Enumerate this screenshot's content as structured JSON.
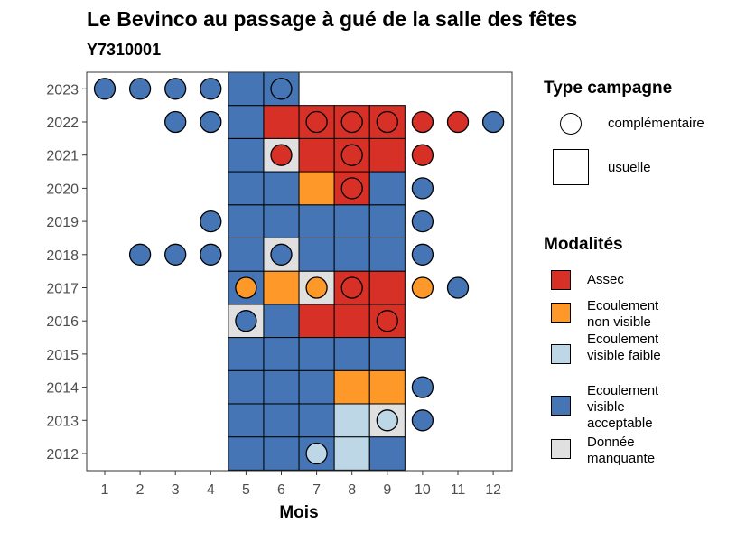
{
  "title": "Le Bevinco au passage à gué de la salle des fêtes",
  "subtitle": "Y7310001",
  "chart_data": {
    "type": "heatmap",
    "xlabel": "Mois",
    "ylabel": "",
    "x_ticks": [
      "1",
      "2",
      "3",
      "4",
      "5",
      "6",
      "7",
      "8",
      "9",
      "10",
      "11",
      "12"
    ],
    "y_ticks": [
      "2012",
      "2013",
      "2014",
      "2015",
      "2016",
      "2017",
      "2018",
      "2019",
      "2020",
      "2021",
      "2022",
      "2023"
    ],
    "colors": {
      "Assec": "#d73027",
      "Ecoulement non visible": "#fe9929",
      "Ecoulement visible faible": "#bdd7e7",
      "Ecoulement visible acceptable": "#4575b4",
      "Donnée manquante": "#e0e0e0"
    },
    "tiles_usuelle": [
      {
        "year": 2012,
        "month": 5,
        "modalite": "Ecoulement visible acceptable"
      },
      {
        "year": 2012,
        "month": 6,
        "modalite": "Ecoulement visible acceptable"
      },
      {
        "year": 2012,
        "month": 7,
        "modalite": "Ecoulement visible acceptable"
      },
      {
        "year": 2012,
        "month": 8,
        "modalite": "Ecoulement visible faible"
      },
      {
        "year": 2012,
        "month": 9,
        "modalite": "Ecoulement visible acceptable"
      },
      {
        "year": 2013,
        "month": 5,
        "modalite": "Ecoulement visible acceptable"
      },
      {
        "year": 2013,
        "month": 6,
        "modalite": "Ecoulement visible acceptable"
      },
      {
        "year": 2013,
        "month": 7,
        "modalite": "Ecoulement visible acceptable"
      },
      {
        "year": 2013,
        "month": 8,
        "modalite": "Ecoulement visible faible"
      },
      {
        "year": 2013,
        "month": 9,
        "modalite": "Donnée manquante"
      },
      {
        "year": 2014,
        "month": 5,
        "modalite": "Ecoulement visible acceptable"
      },
      {
        "year": 2014,
        "month": 6,
        "modalite": "Ecoulement visible acceptable"
      },
      {
        "year": 2014,
        "month": 7,
        "modalite": "Ecoulement visible acceptable"
      },
      {
        "year": 2014,
        "month": 8,
        "modalite": "Ecoulement non visible"
      },
      {
        "year": 2014,
        "month": 9,
        "modalite": "Ecoulement non visible"
      },
      {
        "year": 2015,
        "month": 5,
        "modalite": "Ecoulement visible acceptable"
      },
      {
        "year": 2015,
        "month": 6,
        "modalite": "Ecoulement visible acceptable"
      },
      {
        "year": 2015,
        "month": 7,
        "modalite": "Ecoulement visible acceptable"
      },
      {
        "year": 2015,
        "month": 8,
        "modalite": "Ecoulement visible acceptable"
      },
      {
        "year": 2015,
        "month": 9,
        "modalite": "Ecoulement visible acceptable"
      },
      {
        "year": 2016,
        "month": 5,
        "modalite": "Donnée manquante"
      },
      {
        "year": 2016,
        "month": 6,
        "modalite": "Ecoulement visible acceptable"
      },
      {
        "year": 2016,
        "month": 7,
        "modalite": "Assec"
      },
      {
        "year": 2016,
        "month": 8,
        "modalite": "Assec"
      },
      {
        "year": 2016,
        "month": 9,
        "modalite": "Assec"
      },
      {
        "year": 2017,
        "month": 5,
        "modalite": "Ecoulement visible acceptable"
      },
      {
        "year": 2017,
        "month": 6,
        "modalite": "Ecoulement non visible"
      },
      {
        "year": 2017,
        "month": 7,
        "modalite": "Donnée manquante"
      },
      {
        "year": 2017,
        "month": 8,
        "modalite": "Assec"
      },
      {
        "year": 2017,
        "month": 9,
        "modalite": "Assec"
      },
      {
        "year": 2018,
        "month": 5,
        "modalite": "Ecoulement visible acceptable"
      },
      {
        "year": 2018,
        "month": 6,
        "modalite": "Donnée manquante"
      },
      {
        "year": 2018,
        "month": 7,
        "modalite": "Ecoulement visible acceptable"
      },
      {
        "year": 2018,
        "month": 8,
        "modalite": "Ecoulement visible acceptable"
      },
      {
        "year": 2018,
        "month": 9,
        "modalite": "Ecoulement visible acceptable"
      },
      {
        "year": 2019,
        "month": 5,
        "modalite": "Ecoulement visible acceptable"
      },
      {
        "year": 2019,
        "month": 6,
        "modalite": "Ecoulement visible acceptable"
      },
      {
        "year": 2019,
        "month": 7,
        "modalite": "Ecoulement visible acceptable"
      },
      {
        "year": 2019,
        "month": 8,
        "modalite": "Ecoulement visible acceptable"
      },
      {
        "year": 2019,
        "month": 9,
        "modalite": "Ecoulement visible acceptable"
      },
      {
        "year": 2020,
        "month": 5,
        "modalite": "Ecoulement visible acceptable"
      },
      {
        "year": 2020,
        "month": 6,
        "modalite": "Ecoulement visible acceptable"
      },
      {
        "year": 2020,
        "month": 7,
        "modalite": "Ecoulement non visible"
      },
      {
        "year": 2020,
        "month": 8,
        "modalite": "Assec"
      },
      {
        "year": 2020,
        "month": 9,
        "modalite": "Ecoulement visible acceptable"
      },
      {
        "year": 2021,
        "month": 5,
        "modalite": "Ecoulement visible acceptable"
      },
      {
        "year": 2021,
        "month": 6,
        "modalite": "Donnée manquante"
      },
      {
        "year": 2021,
        "month": 7,
        "modalite": "Assec"
      },
      {
        "year": 2021,
        "month": 8,
        "modalite": "Assec"
      },
      {
        "year": 2021,
        "month": 9,
        "modalite": "Assec"
      },
      {
        "year": 2022,
        "month": 5,
        "modalite": "Ecoulement visible acceptable"
      },
      {
        "year": 2022,
        "month": 6,
        "modalite": "Assec"
      },
      {
        "year": 2022,
        "month": 7,
        "modalite": "Assec"
      },
      {
        "year": 2022,
        "month": 8,
        "modalite": "Assec"
      },
      {
        "year": 2022,
        "month": 9,
        "modalite": "Assec"
      },
      {
        "year": 2023,
        "month": 5,
        "modalite": "Ecoulement visible acceptable"
      },
      {
        "year": 2023,
        "month": 6,
        "modalite": "Ecoulement visible acceptable"
      }
    ],
    "points_complementaire": [
      {
        "year": 2012,
        "month": 7,
        "modalite": "Ecoulement visible faible"
      },
      {
        "year": 2013,
        "month": 9,
        "modalite": "Ecoulement visible faible"
      },
      {
        "year": 2013,
        "month": 10,
        "modalite": "Ecoulement visible acceptable"
      },
      {
        "year": 2014,
        "month": 10,
        "modalite": "Ecoulement visible acceptable"
      },
      {
        "year": 2016,
        "month": 5,
        "modalite": "Ecoulement visible acceptable"
      },
      {
        "year": 2016,
        "month": 9,
        "modalite": "Assec"
      },
      {
        "year": 2017,
        "month": 5,
        "modalite": "Ecoulement non visible"
      },
      {
        "year": 2017,
        "month": 7,
        "modalite": "Ecoulement non visible"
      },
      {
        "year": 2017,
        "month": 8,
        "modalite": "Assec"
      },
      {
        "year": 2017,
        "month": 10,
        "modalite": "Ecoulement non visible"
      },
      {
        "year": 2017,
        "month": 11,
        "modalite": "Ecoulement visible acceptable"
      },
      {
        "year": 2018,
        "month": 2,
        "modalite": "Ecoulement visible acceptable"
      },
      {
        "year": 2018,
        "month": 3,
        "modalite": "Ecoulement visible acceptable"
      },
      {
        "year": 2018,
        "month": 4,
        "modalite": "Ecoulement visible acceptable"
      },
      {
        "year": 2018,
        "month": 6,
        "modalite": "Ecoulement visible acceptable"
      },
      {
        "year": 2018,
        "month": 10,
        "modalite": "Ecoulement visible acceptable"
      },
      {
        "year": 2019,
        "month": 4,
        "modalite": "Ecoulement visible acceptable"
      },
      {
        "year": 2019,
        "month": 10,
        "modalite": "Ecoulement visible acceptable"
      },
      {
        "year": 2020,
        "month": 8,
        "modalite": "Assec"
      },
      {
        "year": 2020,
        "month": 10,
        "modalite": "Ecoulement visible acceptable"
      },
      {
        "year": 2021,
        "month": 6,
        "modalite": "Assec"
      },
      {
        "year": 2021,
        "month": 8,
        "modalite": "Assec"
      },
      {
        "year": 2021,
        "month": 10,
        "modalite": "Assec"
      },
      {
        "year": 2022,
        "month": 3,
        "modalite": "Ecoulement visible acceptable"
      },
      {
        "year": 2022,
        "month": 4,
        "modalite": "Ecoulement visible acceptable"
      },
      {
        "year": 2022,
        "month": 7,
        "modalite": "Assec"
      },
      {
        "year": 2022,
        "month": 8,
        "modalite": "Assec"
      },
      {
        "year": 2022,
        "month": 9,
        "modalite": "Assec"
      },
      {
        "year": 2022,
        "month": 10,
        "modalite": "Assec"
      },
      {
        "year": 2022,
        "month": 11,
        "modalite": "Assec"
      },
      {
        "year": 2022,
        "month": 12,
        "modalite": "Ecoulement visible acceptable"
      },
      {
        "year": 2023,
        "month": 1,
        "modalite": "Ecoulement visible acceptable"
      },
      {
        "year": 2023,
        "month": 2,
        "modalite": "Ecoulement visible acceptable"
      },
      {
        "year": 2023,
        "month": 3,
        "modalite": "Ecoulement visible acceptable"
      },
      {
        "year": 2023,
        "month": 4,
        "modalite": "Ecoulement visible acceptable"
      },
      {
        "year": 2023,
        "month": 6,
        "modalite": "Ecoulement visible acceptable"
      }
    ]
  },
  "legend_type": {
    "title": "Type campagne",
    "items": [
      {
        "label": "complémentaire",
        "shape": "circle"
      },
      {
        "label": "usuelle",
        "shape": "square"
      }
    ]
  },
  "legend_modalites": {
    "title": "Modalités",
    "items": [
      {
        "label": "Assec",
        "color": "#d73027"
      },
      {
        "label": "Ecoulement non visible",
        "color": "#fe9929"
      },
      {
        "label": "Ecoulement visible faible",
        "color": "#bdd7e7"
      },
      {
        "label": "Ecoulement visible acceptable",
        "color": "#4575b4"
      },
      {
        "label": "Donnée manquante",
        "color": "#e0e0e0"
      }
    ]
  }
}
